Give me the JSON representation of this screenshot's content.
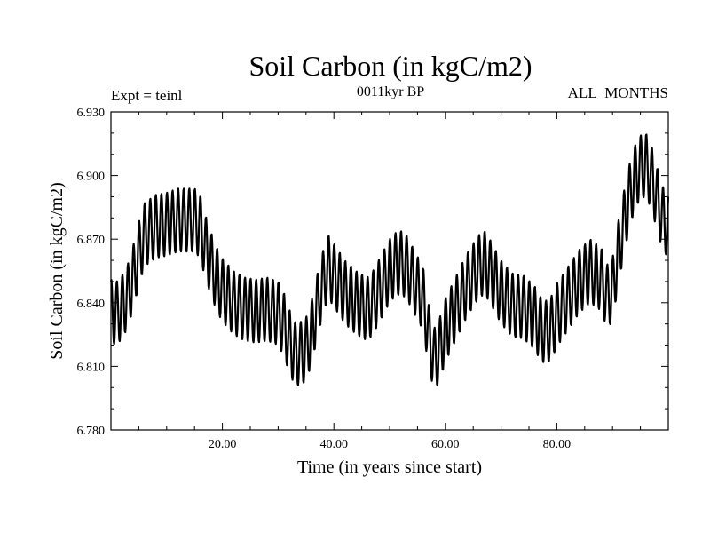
{
  "chart_data": {
    "type": "line",
    "title": "Soil Carbon (in kgC/m2)",
    "subtitle": "0011kyr BP",
    "left_annotation": "Expt = teinl",
    "right_annotation": "ALL_MONTHS",
    "xlabel": "Time (in years since start)",
    "ylabel": "Soil Carbon (in kgC/m2)",
    "xlim": [
      0,
      100
    ],
    "ylim": [
      6.78,
      6.93
    ],
    "x_ticks": [
      20,
      40,
      60,
      80
    ],
    "x_tick_labels": [
      "20.00",
      "40.00",
      "60.00",
      "80.00"
    ],
    "y_ticks": [
      6.78,
      6.81,
      6.84,
      6.87,
      6.9,
      6.93
    ],
    "y_tick_labels": [
      "6.780",
      "6.810",
      "6.840",
      "6.870",
      "6.900",
      "6.930"
    ],
    "grid": false,
    "line_color": "#000000",
    "seasonal_amplitude": 0.015,
    "series": [
      {
        "name": "Soil Carbon",
        "trend_x": [
          0,
          1,
          2,
          3,
          4,
          5,
          6,
          8,
          10,
          12,
          14,
          15,
          16,
          17,
          18,
          19,
          20,
          22,
          24,
          26,
          28,
          30,
          31,
          32,
          33,
          34,
          35,
          36,
          37,
          38,
          39,
          40,
          42,
          44,
          46,
          47,
          48,
          49,
          50,
          51,
          52,
          53,
          54,
          56,
          57,
          58,
          59,
          60,
          62,
          64,
          66,
          67,
          68,
          70,
          72,
          74,
          76,
          77,
          78,
          79,
          80,
          82,
          84,
          86,
          88,
          89,
          90,
          91,
          92,
          93,
          94,
          95,
          96,
          97,
          98,
          99,
          100
        ],
        "trend_y": [
          6.836,
          6.835,
          6.838,
          6.843,
          6.852,
          6.863,
          6.872,
          6.876,
          6.877,
          6.879,
          6.879,
          6.879,
          6.876,
          6.866,
          6.858,
          6.851,
          6.846,
          6.84,
          6.837,
          6.836,
          6.837,
          6.835,
          6.83,
          6.822,
          6.816,
          6.816,
          6.818,
          6.826,
          6.838,
          6.849,
          6.857,
          6.853,
          6.845,
          6.84,
          6.837,
          6.84,
          6.845,
          6.85,
          6.855,
          6.858,
          6.859,
          6.857,
          6.852,
          6.842,
          6.825,
          6.813,
          6.818,
          6.827,
          6.838,
          6.849,
          6.857,
          6.859,
          6.855,
          6.845,
          6.839,
          6.838,
          6.833,
          6.828,
          6.826,
          6.828,
          6.834,
          6.842,
          6.85,
          6.855,
          6.851,
          6.843,
          6.846,
          6.863,
          6.877,
          6.89,
          6.899,
          6.904,
          6.905,
          6.899,
          6.889,
          6.88,
          6.876
        ]
      }
    ]
  }
}
